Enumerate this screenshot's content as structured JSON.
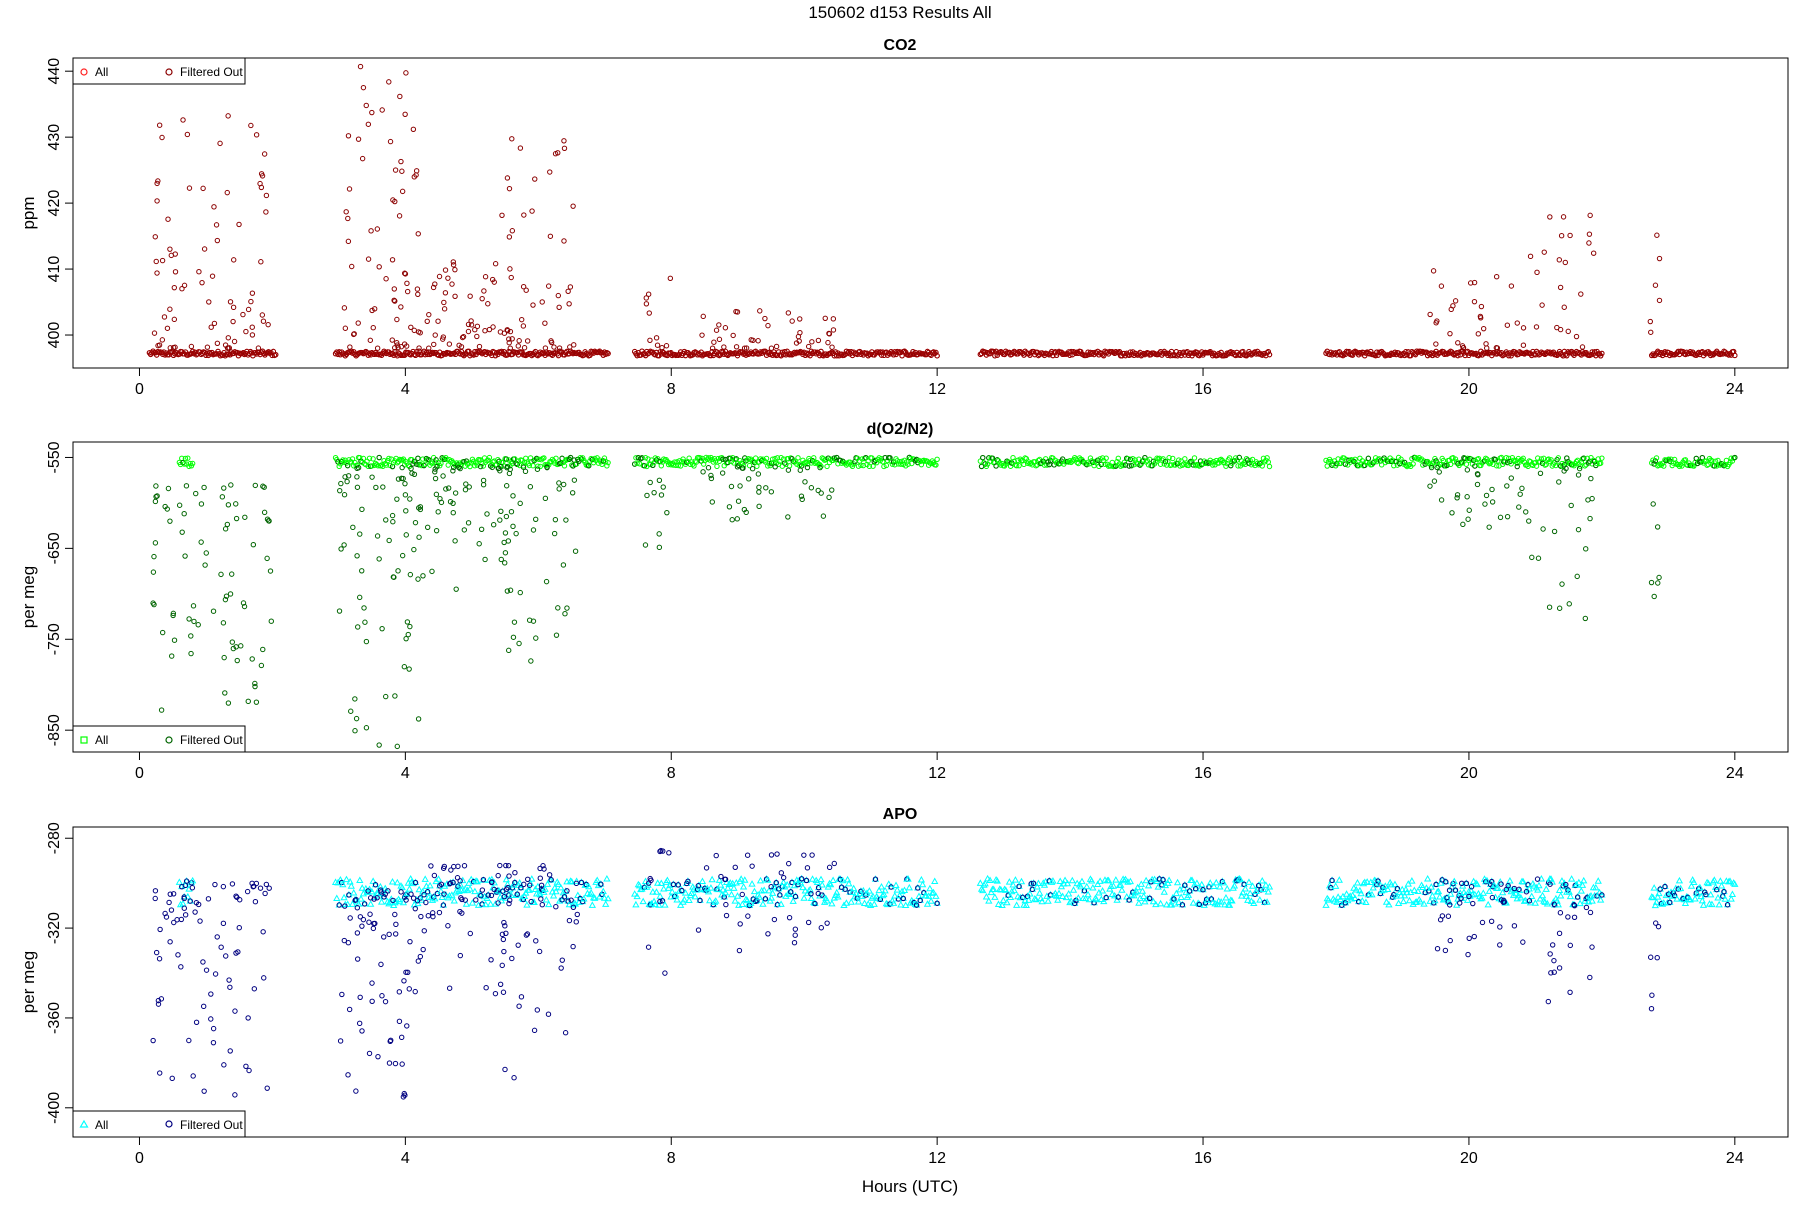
{
  "figure": {
    "title": "150602   d153   Results All"
  },
  "chart_data": [
    {
      "type": "scatter",
      "title": "CO2",
      "xlabel": "Hours (UTC)",
      "ylabel": "ppm",
      "xlim": [
        -1,
        24.8
      ],
      "ylim": [
        395,
        442
      ],
      "xticks": [
        "0",
        "4",
        "8",
        "12",
        "16",
        "20",
        "24"
      ],
      "yticks": [
        "400",
        "410",
        "420",
        "430",
        "440"
      ],
      "legend": {
        "position": "top-left",
        "entries": [
          "All",
          "Filtered Out"
        ]
      },
      "grid": false,
      "colors": {
        "all": "#ff2020",
        "filtered": "#8b0000"
      },
      "baseline": 397.2,
      "segments": [
        [
          0.15,
          2.05
        ],
        [
          2.95,
          7.05
        ],
        [
          7.45,
          12.0
        ],
        [
          12.65,
          17.0
        ],
        [
          17.85,
          22.0
        ],
        [
          22.75,
          24.0
        ]
      ],
      "spikes": [
        {
          "x0": 0.2,
          "x1": 2.0,
          "n": 80,
          "lo": 398,
          "hi": 435
        },
        {
          "x0": 3.0,
          "x1": 4.2,
          "n": 70,
          "lo": 398,
          "hi": 441
        },
        {
          "x0": 4.2,
          "x1": 5.6,
          "n": 55,
          "lo": 398,
          "hi": 413
        },
        {
          "x0": 5.4,
          "x1": 6.6,
          "n": 45,
          "lo": 398,
          "hi": 430
        },
        {
          "x0": 7.6,
          "x1": 8.0,
          "n": 10,
          "lo": 398,
          "hi": 410
        },
        {
          "x0": 8.4,
          "x1": 10.5,
          "n": 40,
          "lo": 398,
          "hi": 404
        },
        {
          "x0": 19.4,
          "x1": 20.8,
          "n": 30,
          "lo": 398,
          "hi": 410
        },
        {
          "x0": 20.8,
          "x1": 21.9,
          "n": 25,
          "lo": 398,
          "hi": 420
        },
        {
          "x0": 22.7,
          "x1": 22.9,
          "n": 6,
          "lo": 398,
          "hi": 422
        }
      ]
    },
    {
      "type": "scatter",
      "title": "d(O2/N2)",
      "xlabel": "Hours (UTC)",
      "ylabel": "per meg",
      "xlim": [
        -1,
        24.8
      ],
      "ylim": [
        -874,
        -533
      ],
      "xticks": [
        "0",
        "4",
        "8",
        "12",
        "16",
        "20",
        "24"
      ],
      "yticks": [
        "-550",
        "-650",
        "-750",
        "-850"
      ],
      "legend": {
        "position": "bottom-left",
        "entries": [
          "All",
          "Filtered Out"
        ]
      },
      "grid": false,
      "colors": {
        "all": "#00ff00",
        "filtered": "#006400"
      },
      "baseline": -555,
      "segments": [
        [
          0.6,
          0.8
        ],
        [
          2.95,
          7.05
        ],
        [
          7.45,
          12.0
        ],
        [
          12.65,
          17.0
        ],
        [
          17.85,
          22.0
        ],
        [
          22.75,
          24.0
        ]
      ],
      "spikes": [
        {
          "x0": 0.2,
          "x1": 2.0,
          "n": 80,
          "lo": -840,
          "hi": -580
        },
        {
          "x0": 3.0,
          "x1": 4.2,
          "n": 70,
          "lo": -868,
          "hi": -560
        },
        {
          "x0": 4.2,
          "x1": 5.6,
          "n": 55,
          "lo": -700,
          "hi": -560
        },
        {
          "x0": 5.4,
          "x1": 6.6,
          "n": 45,
          "lo": -795,
          "hi": -560
        },
        {
          "x0": 7.6,
          "x1": 8.0,
          "n": 10,
          "lo": -660,
          "hi": -565
        },
        {
          "x0": 8.4,
          "x1": 10.5,
          "n": 40,
          "lo": -620,
          "hi": -560
        },
        {
          "x0": 19.4,
          "x1": 20.8,
          "n": 30,
          "lo": -635,
          "hi": -560
        },
        {
          "x0": 20.8,
          "x1": 21.9,
          "n": 25,
          "lo": -730,
          "hi": -560
        },
        {
          "x0": 22.7,
          "x1": 22.9,
          "n": 6,
          "lo": -755,
          "hi": -600
        }
      ]
    },
    {
      "type": "scatter",
      "title": "APO",
      "xlabel": "Hours (UTC)",
      "ylabel": "per meg",
      "xlim": [
        -1,
        24.8
      ],
      "ylim": [
        -413,
        -275
      ],
      "xticks": [
        "0",
        "4",
        "8",
        "12",
        "16",
        "20",
        "24"
      ],
      "yticks": [
        "-280",
        "-320",
        "-360",
        "-400"
      ],
      "legend": {
        "position": "bottom-left",
        "entries": [
          "All",
          "Filtered Out"
        ]
      },
      "grid": false,
      "colors": {
        "all": "#00ffff",
        "filtered": "#000080"
      },
      "baseline": -304,
      "segments": [
        [
          0.6,
          0.8
        ],
        [
          2.95,
          7.05
        ],
        [
          7.45,
          12.0
        ],
        [
          12.65,
          17.0
        ],
        [
          17.85,
          22.0
        ],
        [
          22.75,
          24.0
        ]
      ],
      "spikes": [
        {
          "x0": 0.2,
          "x1": 2.0,
          "n": 80,
          "lo": -396,
          "hi": -300
        },
        {
          "x0": 3.0,
          "x1": 4.2,
          "n": 70,
          "lo": -400,
          "hi": -303
        },
        {
          "x0": 4.2,
          "x1": 5.6,
          "n": 55,
          "lo": -350,
          "hi": -292
        },
        {
          "x0": 5.4,
          "x1": 6.6,
          "n": 45,
          "lo": -390,
          "hi": -292
        },
        {
          "x0": 7.6,
          "x1": 8.0,
          "n": 10,
          "lo": -345,
          "hi": -282
        },
        {
          "x0": 8.4,
          "x1": 10.5,
          "n": 40,
          "lo": -330,
          "hi": -287
        },
        {
          "x0": 19.4,
          "x1": 20.8,
          "n": 30,
          "lo": -335,
          "hi": -300
        },
        {
          "x0": 20.8,
          "x1": 21.9,
          "n": 25,
          "lo": -358,
          "hi": -298
        },
        {
          "x0": 22.7,
          "x1": 22.9,
          "n": 6,
          "lo": -372,
          "hi": -315
        }
      ]
    }
  ]
}
